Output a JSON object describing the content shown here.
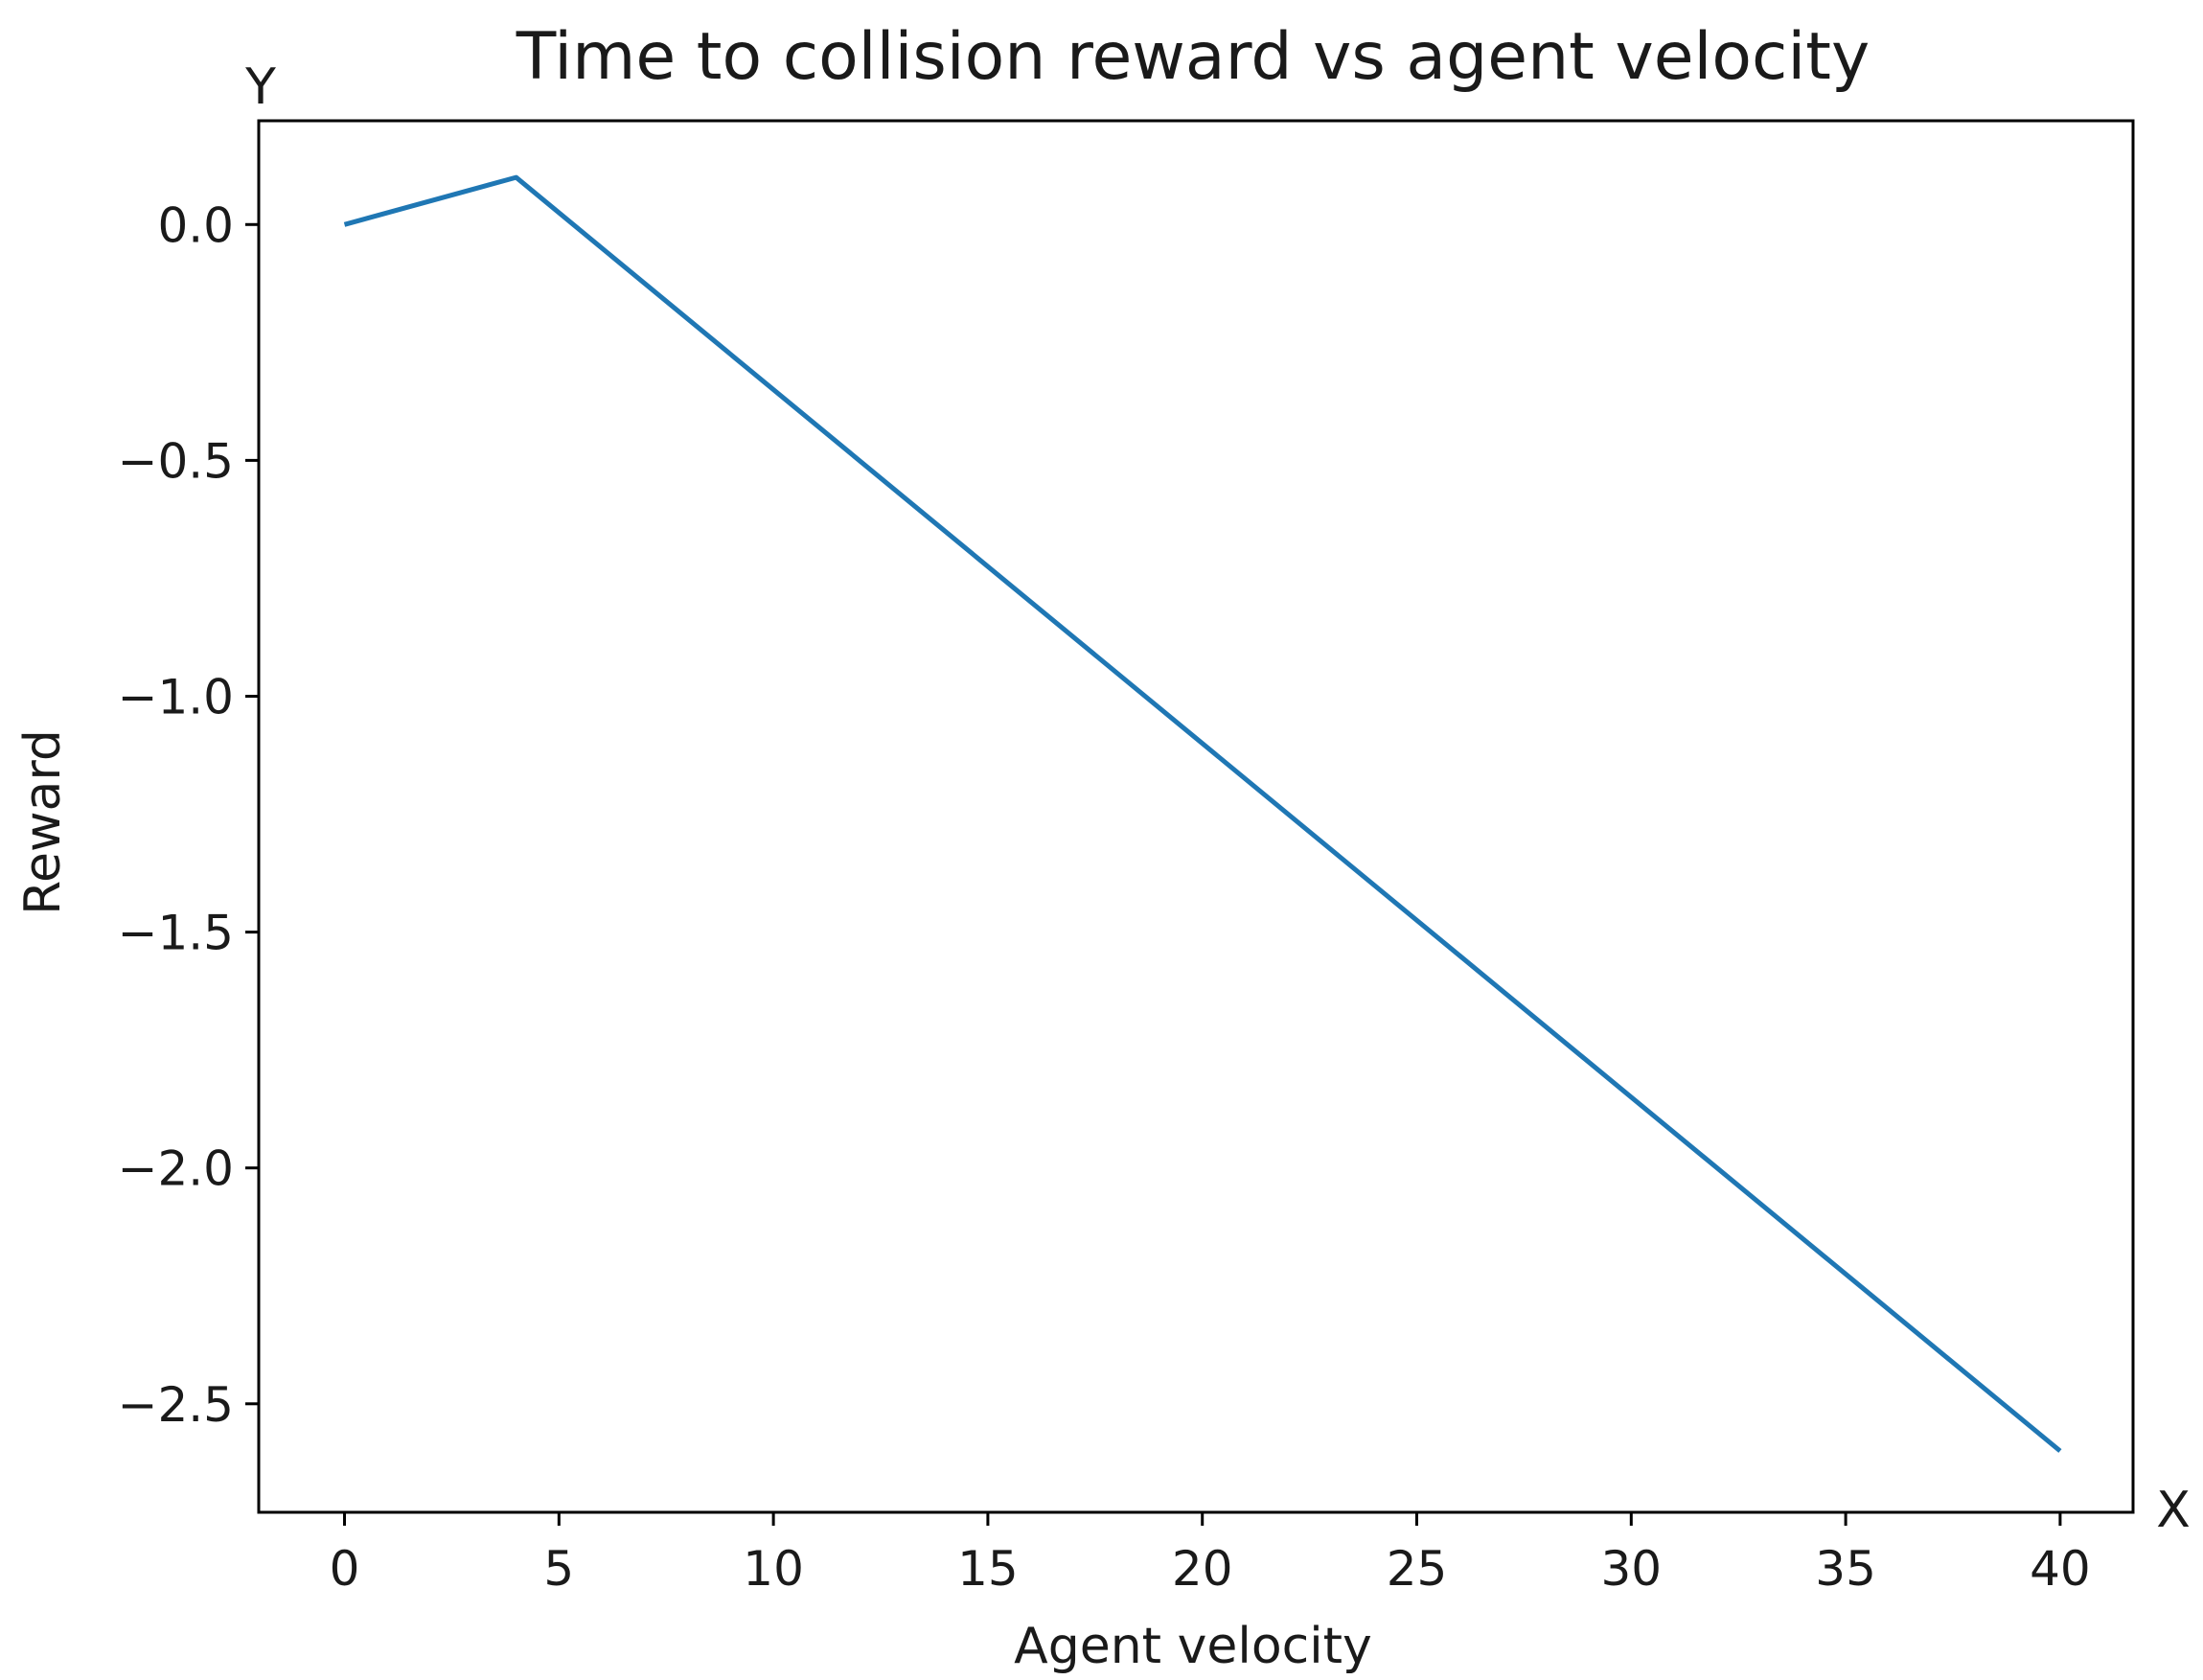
{
  "chart_data": {
    "type": "line",
    "title": "Time to collision reward vs agent velocity",
    "xlabel": "Agent velocity",
    "ylabel": "Reward",
    "x_axis_marker": "X",
    "y_axis_marker": "Y",
    "xlim": [
      -2,
      41.7
    ],
    "ylim": [
      -2.73,
      0.22
    ],
    "xticks": [
      0,
      5,
      10,
      15,
      20,
      25,
      30,
      35,
      40
    ],
    "yticks": [
      0.0,
      -0.5,
      -1.0,
      -1.5,
      -2.0,
      -2.5
    ],
    "xtick_labels": [
      "0",
      "5",
      "10",
      "15",
      "20",
      "25",
      "30",
      "35",
      "40"
    ],
    "ytick_labels": [
      "0.0",
      "−0.5",
      "−1.0",
      "−1.5",
      "−2.0",
      "−2.5"
    ],
    "grid": false,
    "series": [
      {
        "color": "#1f77b4",
        "x": [
          0,
          4,
          40
        ],
        "y": [
          0.0,
          0.1,
          -2.6
        ]
      }
    ]
  }
}
